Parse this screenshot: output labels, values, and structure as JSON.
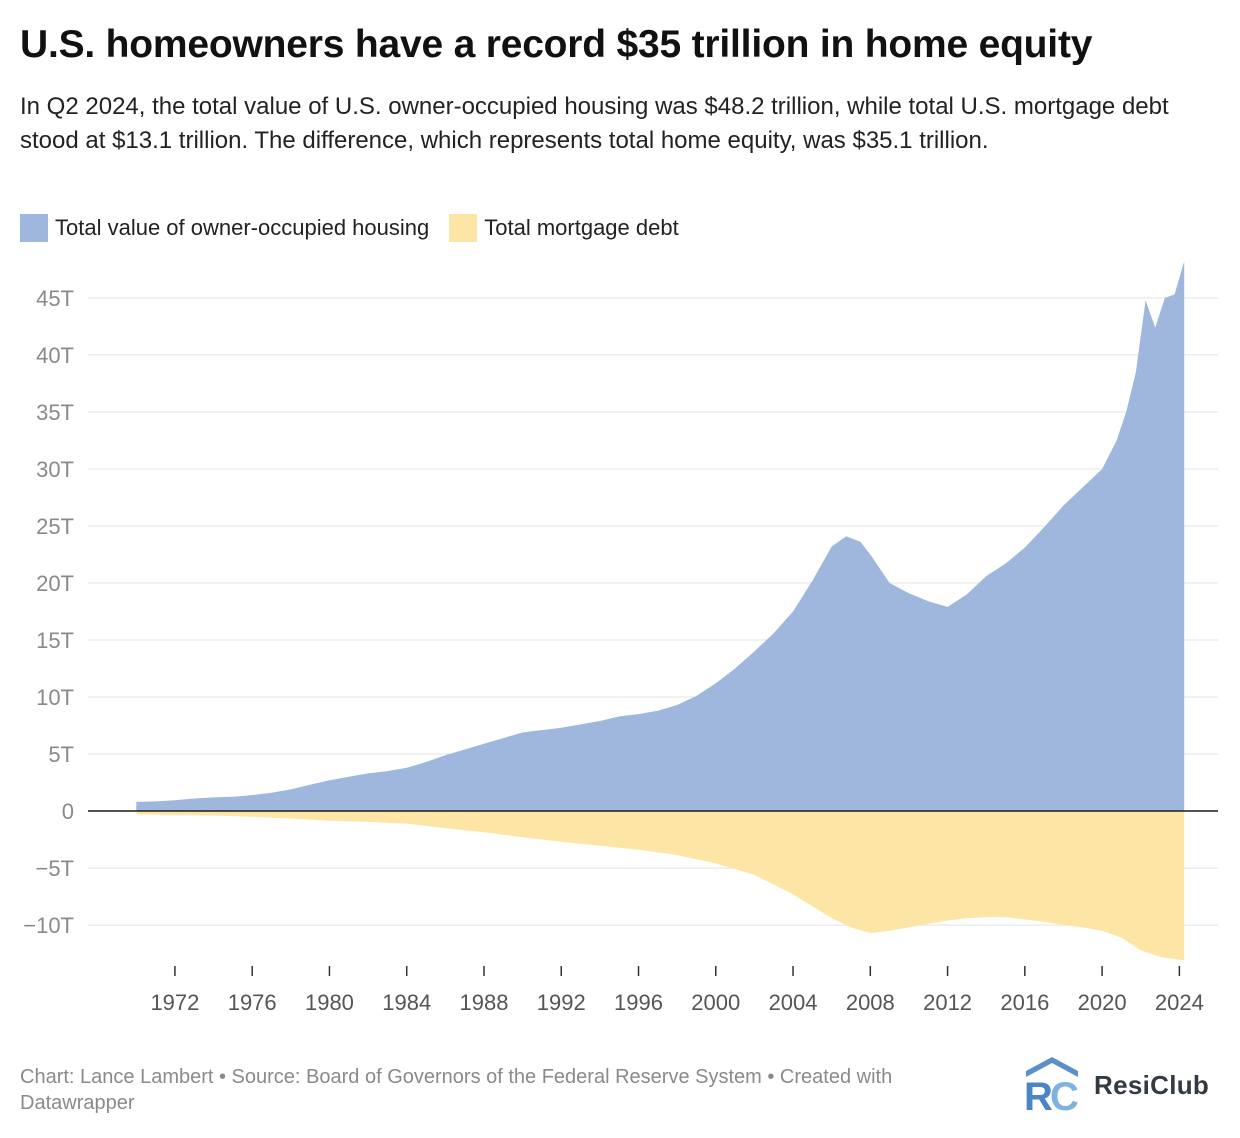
{
  "header": {
    "title": "U.S. homeowners have a record $35 trillion in home equity",
    "subtitle": "In Q2 2024, the total value of U.S. owner-occupied housing was $48.2 trillion, while total U.S. mortgage debt stood at $13.1 trillion. The difference, which represents total home equity, was $35.1 trillion."
  },
  "legend": {
    "items": [
      {
        "label": "Total value of owner-occupied housing",
        "color": "#9fb6dd"
      },
      {
        "label": "Total mortgage debt",
        "color": "#fde6a5"
      }
    ]
  },
  "footer": {
    "credit": "Chart: Lance Lambert • Source: Board of Governors of the Federal Reserve System • Created with Datawrapper"
  },
  "brand": {
    "name": "ResiClub",
    "logo_icon": "resiclub-rc-logo-icon"
  },
  "colors": {
    "housing": "#9fb6dd",
    "debt": "#fde6a5",
    "grid": "#e3e3e3",
    "axis_line": "#1a1a1a",
    "tick_label": "#8a8a8a"
  },
  "chart_data": {
    "type": "area",
    "title": "U.S. homeowners have a record $35 trillion in home equity",
    "xlabel": "",
    "ylabel": "",
    "xlim": [
      1967.5,
      2026
    ],
    "ylim": [
      -13.5,
      48.5
    ],
    "grid": true,
    "legend_position": "top-left",
    "y_ticks": [
      {
        "value": 45,
        "label": "45T"
      },
      {
        "value": 40,
        "label": "40T"
      },
      {
        "value": 35,
        "label": "35T"
      },
      {
        "value": 30,
        "label": "30T"
      },
      {
        "value": 25,
        "label": "25T"
      },
      {
        "value": 20,
        "label": "20T"
      },
      {
        "value": 15,
        "label": "15T"
      },
      {
        "value": 10,
        "label": "10T"
      },
      {
        "value": 5,
        "label": "5T"
      },
      {
        "value": 0,
        "label": "0"
      },
      {
        "value": -5,
        "label": "−5T"
      },
      {
        "value": -10,
        "label": "−10T"
      }
    ],
    "x_ticks": [
      {
        "value": 1972,
        "label": "1972"
      },
      {
        "value": 1976,
        "label": "1976"
      },
      {
        "value": 1980,
        "label": "1980"
      },
      {
        "value": 1984,
        "label": "1984"
      },
      {
        "value": 1988,
        "label": "1988"
      },
      {
        "value": 1992,
        "label": "1992"
      },
      {
        "value": 1996,
        "label": "1996"
      },
      {
        "value": 2000,
        "label": "2000"
      },
      {
        "value": 2004,
        "label": "2004"
      },
      {
        "value": 2008,
        "label": "2008"
      },
      {
        "value": 2012,
        "label": "2012"
      },
      {
        "value": 2016,
        "label": "2016"
      },
      {
        "value": 2020,
        "label": "2020"
      },
      {
        "value": 2024,
        "label": "2024"
      }
    ],
    "series": [
      {
        "name": "Total value of owner-occupied housing",
        "points": [
          [
            1970.0,
            0.8
          ],
          [
            1971.0,
            0.85
          ],
          [
            1972.0,
            0.95
          ],
          [
            1973.0,
            1.1
          ],
          [
            1974.0,
            1.2
          ],
          [
            1975.0,
            1.25
          ],
          [
            1976.0,
            1.4
          ],
          [
            1977.0,
            1.6
          ],
          [
            1978.0,
            1.9
          ],
          [
            1979.0,
            2.3
          ],
          [
            1980.0,
            2.7
          ],
          [
            1981.0,
            3.0
          ],
          [
            1982.0,
            3.3
          ],
          [
            1983.0,
            3.5
          ],
          [
            1984.0,
            3.8
          ],
          [
            1985.0,
            4.3
          ],
          [
            1986.0,
            4.9
          ],
          [
            1987.0,
            5.4
          ],
          [
            1988.0,
            5.9
          ],
          [
            1989.0,
            6.4
          ],
          [
            1990.0,
            6.9
          ],
          [
            1991.0,
            7.1
          ],
          [
            1992.0,
            7.3
          ],
          [
            1993.0,
            7.6
          ],
          [
            1994.0,
            7.9
          ],
          [
            1995.0,
            8.3
          ],
          [
            1996.0,
            8.5
          ],
          [
            1997.0,
            8.8
          ],
          [
            1998.0,
            9.3
          ],
          [
            1999.0,
            10.1
          ],
          [
            2000.0,
            11.2
          ],
          [
            2001.0,
            12.5
          ],
          [
            2002.0,
            14.0
          ],
          [
            2003.0,
            15.6
          ],
          [
            2004.0,
            17.5
          ],
          [
            2005.0,
            20.2
          ],
          [
            2006.0,
            23.2
          ],
          [
            2006.75,
            24.1
          ],
          [
            2007.5,
            23.6
          ],
          [
            2008.0,
            22.5
          ],
          [
            2009.0,
            20.0
          ],
          [
            2010.0,
            19.1
          ],
          [
            2011.0,
            18.4
          ],
          [
            2012.0,
            17.9
          ],
          [
            2013.0,
            19.0
          ],
          [
            2014.0,
            20.6
          ],
          [
            2015.0,
            21.7
          ],
          [
            2016.0,
            23.1
          ],
          [
            2017.0,
            24.9
          ],
          [
            2018.0,
            26.8
          ],
          [
            2019.0,
            28.4
          ],
          [
            2020.0,
            30.0
          ],
          [
            2020.75,
            32.5
          ],
          [
            2021.25,
            35.0
          ],
          [
            2021.75,
            38.5
          ],
          [
            2022.25,
            44.8
          ],
          [
            2022.75,
            42.4
          ],
          [
            2023.25,
            45.0
          ],
          [
            2023.75,
            45.3
          ],
          [
            2024.25,
            48.2
          ]
        ]
      },
      {
        "name": "Total mortgage debt",
        "points": [
          [
            1970.0,
            -0.3
          ],
          [
            1972.0,
            -0.35
          ],
          [
            1974.0,
            -0.4
          ],
          [
            1976.0,
            -0.5
          ],
          [
            1978.0,
            -0.65
          ],
          [
            1980.0,
            -0.85
          ],
          [
            1982.0,
            -0.95
          ],
          [
            1984.0,
            -1.1
          ],
          [
            1986.0,
            -1.5
          ],
          [
            1988.0,
            -1.85
          ],
          [
            1990.0,
            -2.3
          ],
          [
            1992.0,
            -2.7
          ],
          [
            1994.0,
            -3.05
          ],
          [
            1996.0,
            -3.4
          ],
          [
            1998.0,
            -3.85
          ],
          [
            2000.0,
            -4.6
          ],
          [
            2002.0,
            -5.6
          ],
          [
            2004.0,
            -7.3
          ],
          [
            2006.0,
            -9.4
          ],
          [
            2007.0,
            -10.2
          ],
          [
            2008.0,
            -10.7
          ],
          [
            2009.0,
            -10.5
          ],
          [
            2010.0,
            -10.2
          ],
          [
            2011.0,
            -9.9
          ],
          [
            2012.0,
            -9.6
          ],
          [
            2013.0,
            -9.4
          ],
          [
            2014.0,
            -9.3
          ],
          [
            2015.0,
            -9.3
          ],
          [
            2016.0,
            -9.5
          ],
          [
            2017.0,
            -9.7
          ],
          [
            2018.0,
            -10.0
          ],
          [
            2019.0,
            -10.2
          ],
          [
            2020.0,
            -10.5
          ],
          [
            2021.0,
            -11.1
          ],
          [
            2022.0,
            -12.2
          ],
          [
            2023.0,
            -12.8
          ],
          [
            2024.25,
            -13.1
          ]
        ]
      }
    ]
  }
}
